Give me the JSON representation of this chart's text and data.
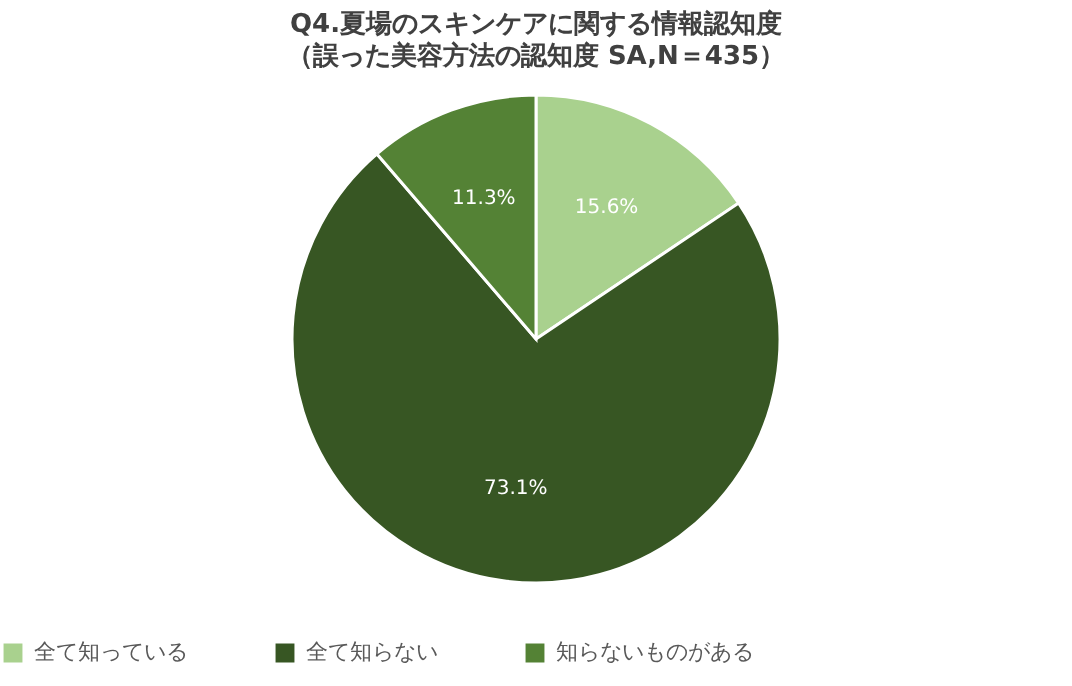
{
  "chart_data": {
    "type": "pie",
    "title": "Q4.夏場のスキンケアに関する情報認知度",
    "subtitle": "（誤った美容方法の認知度 SA,N＝435）",
    "categories": [
      "全て知っている",
      "全て知らない",
      "知らないものがある"
    ],
    "values": [
      15.6,
      73.1,
      11.3
    ],
    "value_labels": [
      "15.6%",
      "73.1%",
      "11.3%"
    ],
    "colors": [
      "#a9d18e",
      "#375623",
      "#548235"
    ],
    "legend": "bottom"
  }
}
